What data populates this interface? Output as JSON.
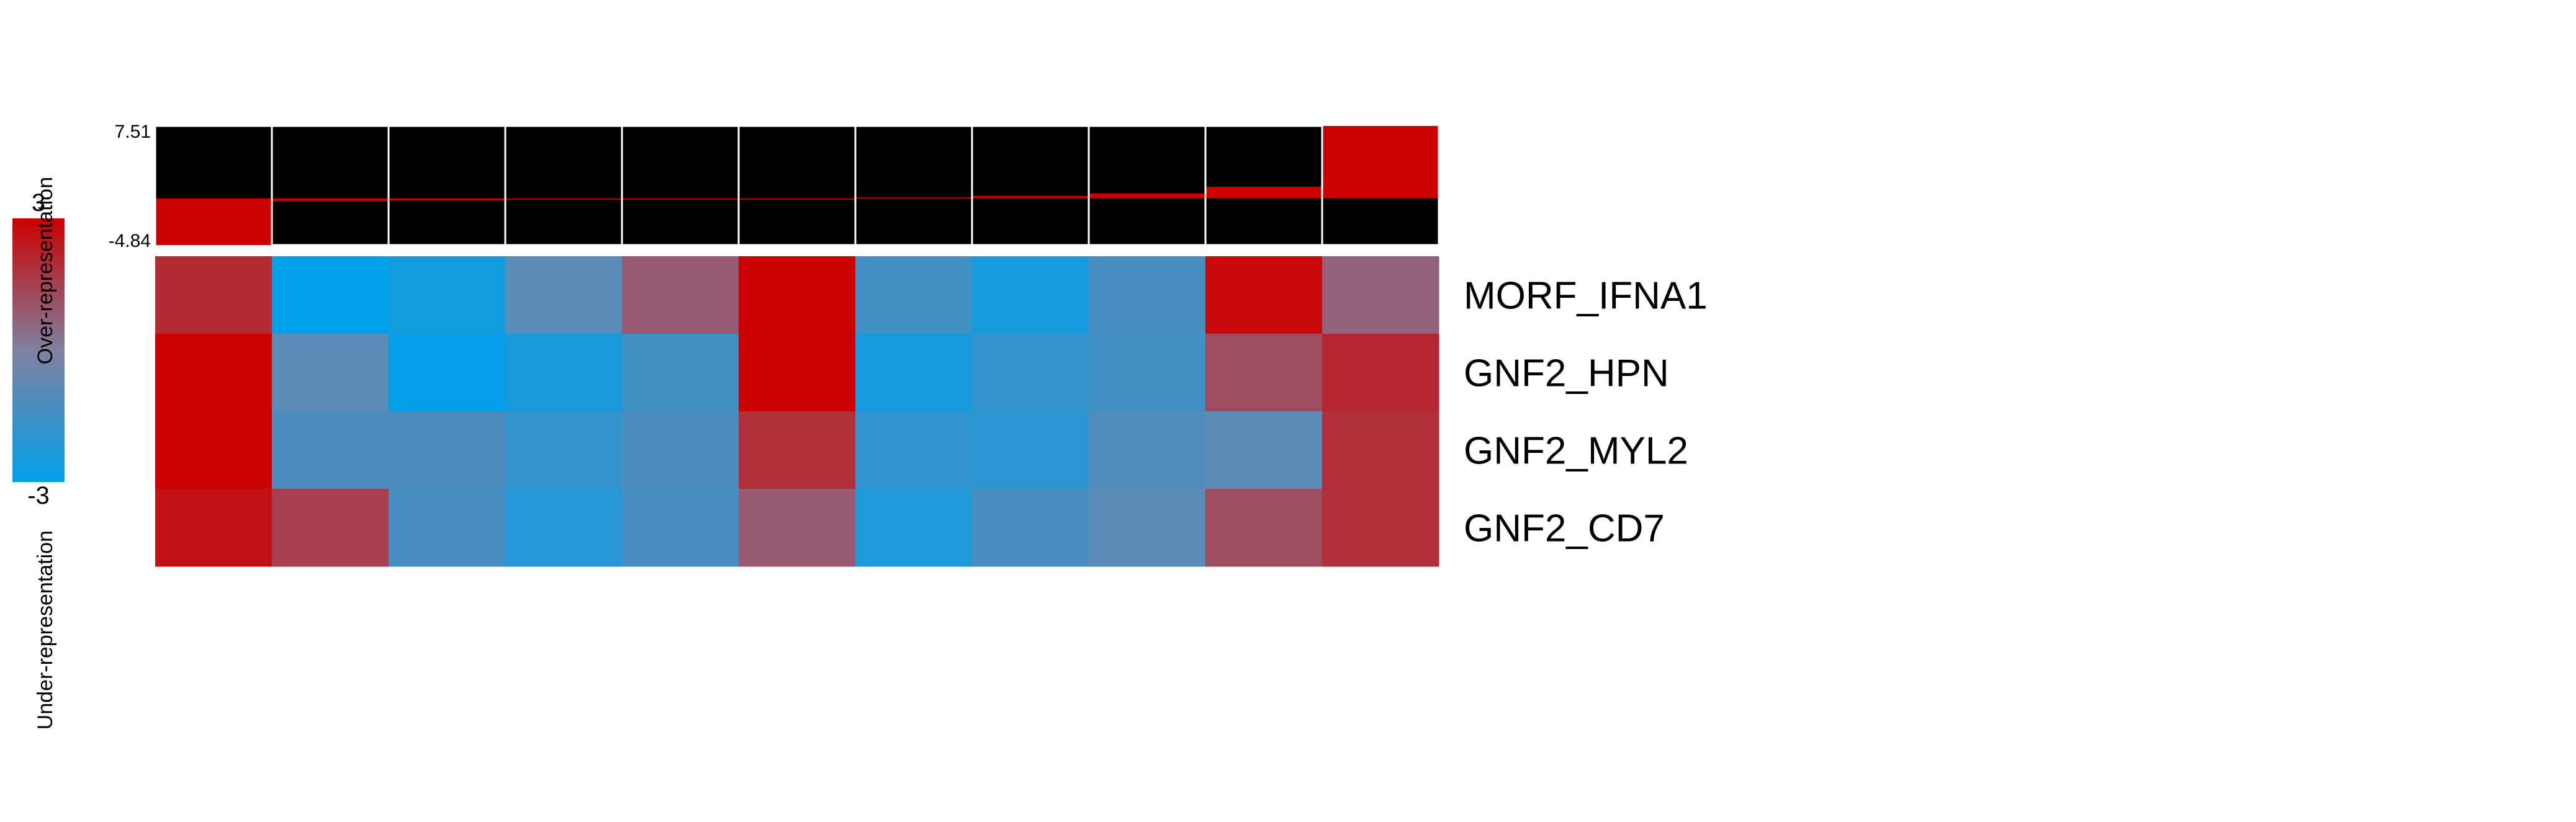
{
  "chart_data": {
    "type": "heatmap",
    "title": "",
    "legend": {
      "max_label": "3",
      "min_label": "-3",
      "range": [
        -3,
        3
      ],
      "over_label": "Over-representation",
      "under_label": "Under-representation",
      "colors": {
        "high": "#cc0000",
        "mid": "#8080a0",
        "low": "#00a0ea"
      }
    },
    "bar_track": {
      "max_label": "7.51",
      "min_label": "-4.84",
      "range": [
        -4.84,
        7.51
      ],
      "values": [
        -4.84,
        -0.3,
        -0.2,
        -0.1,
        0.0,
        0.0,
        0.1,
        0.25,
        0.5,
        1.2,
        7.51
      ],
      "positive_color": "#cc0000",
      "background_color": "#000000"
    },
    "rows": [
      "MORF_IFNA1",
      "GNF2_HPN",
      "GNF2_MYL2",
      "GNF2_CD7"
    ],
    "columns": 11,
    "values": [
      [
        2.0,
        -3.0,
        -2.6,
        -0.9,
        0.9,
        3.0,
        -1.5,
        -2.5,
        -1.3,
        2.8,
        0.7
      ],
      [
        3.0,
        -0.9,
        -2.9,
        -2.4,
        -1.5,
        3.0,
        -2.5,
        -1.8,
        -1.5,
        1.2,
        2.1
      ],
      [
        3.0,
        -1.2,
        -1.2,
        -1.8,
        -1.2,
        1.9,
        -1.9,
        -2.0,
        -1.1,
        -0.9,
        1.9
      ],
      [
        2.6,
        1.5,
        -1.3,
        -2.1,
        -1.3,
        0.9,
        -2.3,
        -1.3,
        -0.9,
        1.2,
        1.9
      ]
    ]
  }
}
